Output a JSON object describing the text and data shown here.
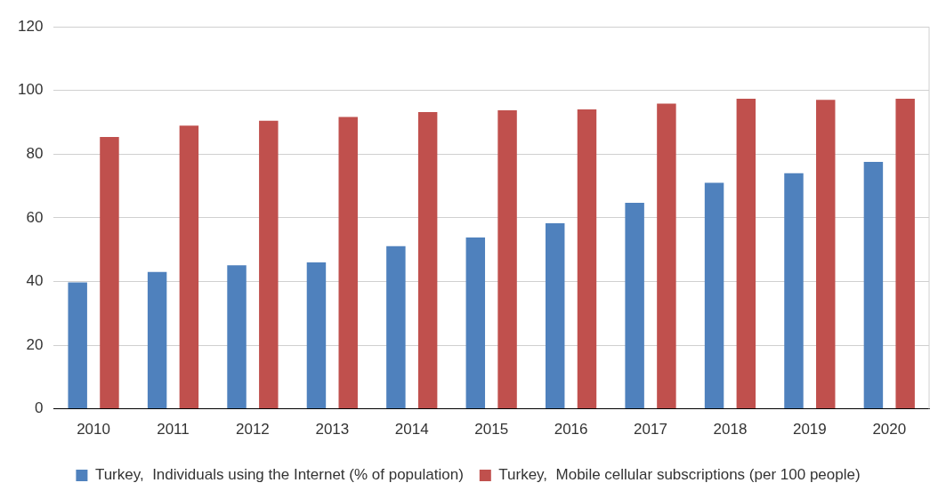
{
  "chart_data": {
    "type": "bar",
    "categories": [
      "2010",
      "2011",
      "2012",
      "2013",
      "2014",
      "2015",
      "2016",
      "2017",
      "2018",
      "2019",
      "2020"
    ],
    "series": [
      {
        "name": "Turkey,  Individuals using the Internet (% of population)",
        "color": "#4f81bd",
        "values": [
          39.7,
          43.0,
          45.1,
          46.0,
          51.1,
          53.8,
          58.3,
          64.7,
          71.0,
          74.0,
          77.6
        ]
      },
      {
        "name": "Turkey,  Mobile cellular subscriptions (per 100 people)",
        "color": "#c0504d",
        "values": [
          85.4,
          89.0,
          90.5,
          91.7,
          93.2,
          93.8,
          94.1,
          95.9,
          97.4,
          97.1,
          97.4
        ]
      }
    ],
    "ylim": [
      0,
      120
    ],
    "yticks": [
      0,
      20,
      40,
      60,
      80,
      100,
      120
    ],
    "grid": "y",
    "legend": "bottom"
  }
}
